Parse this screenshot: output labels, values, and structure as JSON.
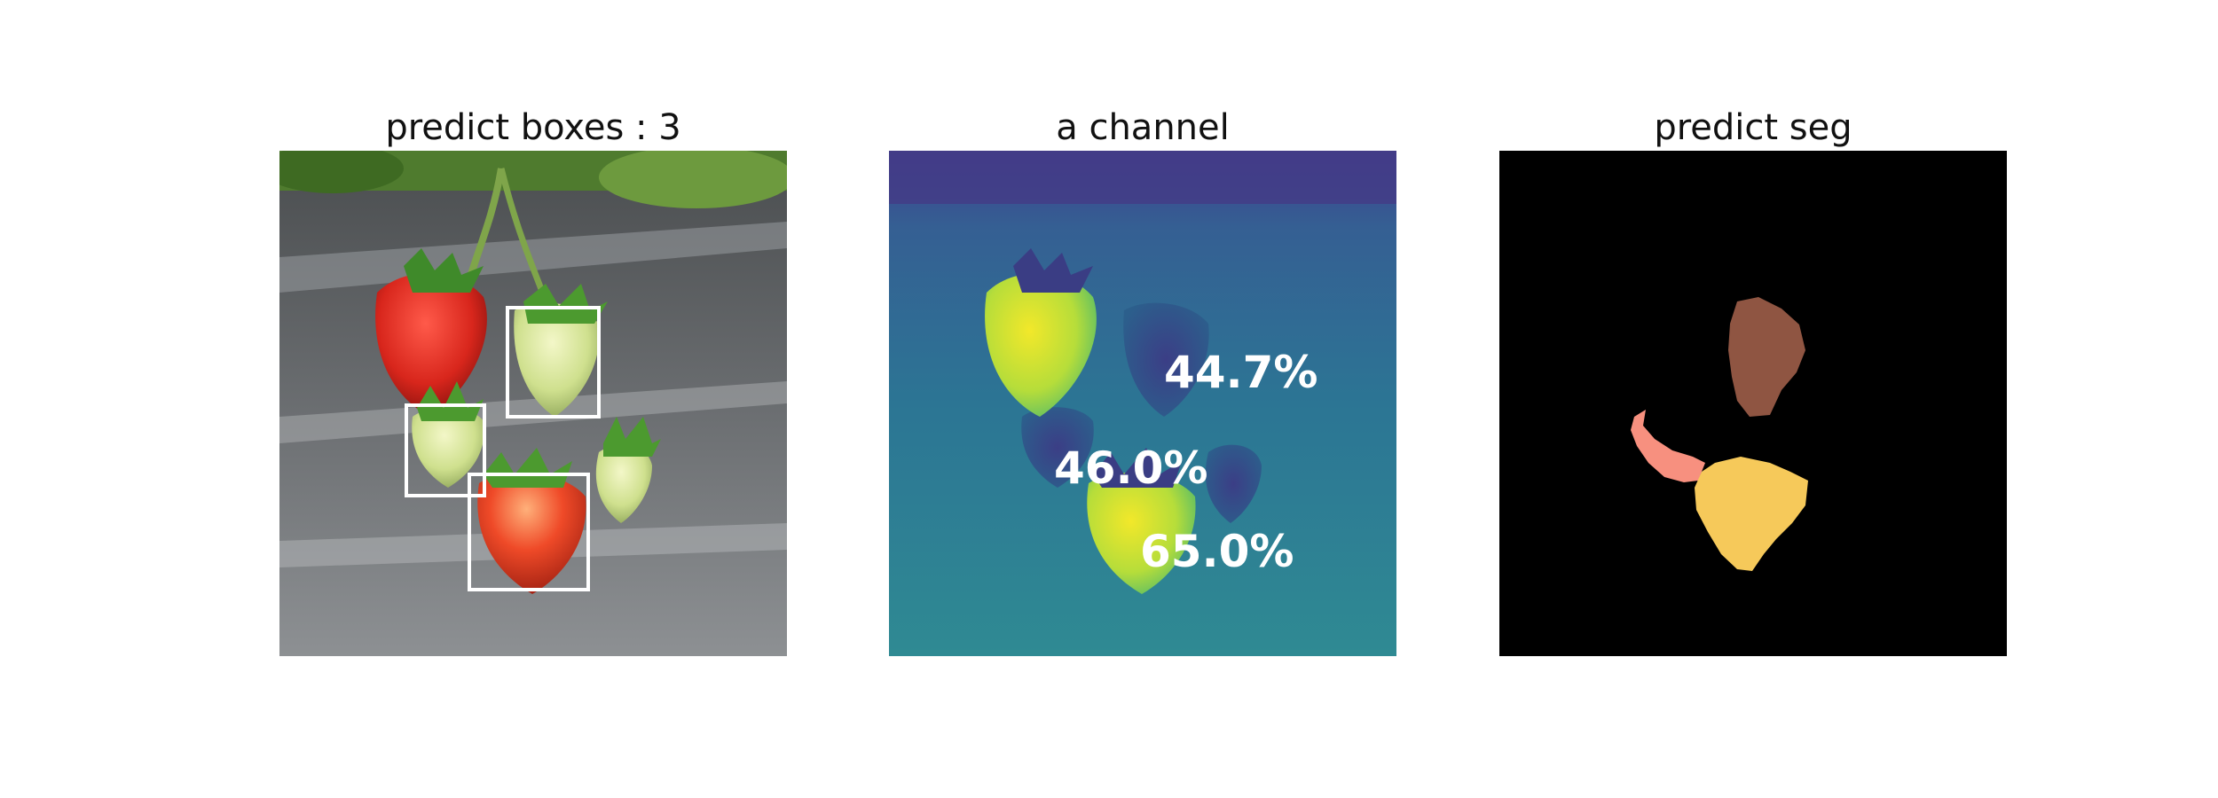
{
  "panels": [
    {
      "title": "predict boxes : 3"
    },
    {
      "title": "a channel"
    },
    {
      "title": "predict seg"
    }
  ],
  "detections": {
    "count": 3,
    "percentages": [
      "44.7%",
      "46.0%",
      "65.0%"
    ]
  },
  "colors": {
    "box_outline": "#ffffff",
    "seg_background": "#000000",
    "seg_class_1": "#8f5542",
    "seg_class_2": "#f7907f",
    "seg_class_3": "#f6c95a",
    "channel_low": "#3f4f8f",
    "channel_mid": "#2f7f95",
    "channel_high": "#d8e42a"
  }
}
